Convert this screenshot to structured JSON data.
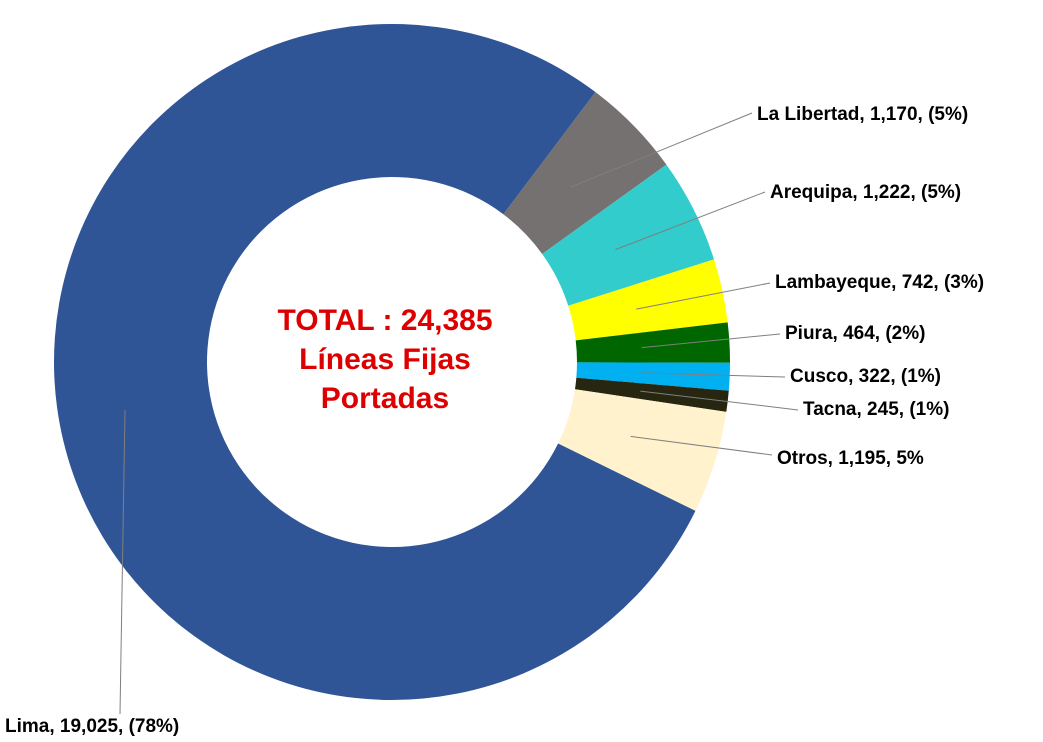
{
  "chart_data": {
    "type": "donut",
    "center_text": [
      "TOTAL : 24,385",
      "Líneas Fijas",
      "Portadas"
    ],
    "categories": [
      "La Libertad",
      "Arequipa",
      "Lambayeque",
      "Piura",
      "Cusco",
      "Tacna",
      "Otros",
      "Lima"
    ],
    "values": [
      1170,
      1222,
      742,
      464,
      322,
      245,
      1195,
      19025
    ],
    "value_labels": [
      "La Libertad, 1,170, (5%)",
      "Arequipa,  1,222, (5%)",
      "Lambayeque, 742, (3%)",
      "Piura, 464, (2%)",
      "Cusco, 322, (1%)",
      "Tacna, 245, (1%)",
      "Otros, 1,195, 5%",
      "Lima, 19,025, (78%)"
    ],
    "colors": [
      "#767171",
      "#33cccc",
      "#ffff00",
      "#006600",
      "#00b0f0",
      "#262611",
      "#fff2cc",
      "#2f5597"
    ]
  }
}
